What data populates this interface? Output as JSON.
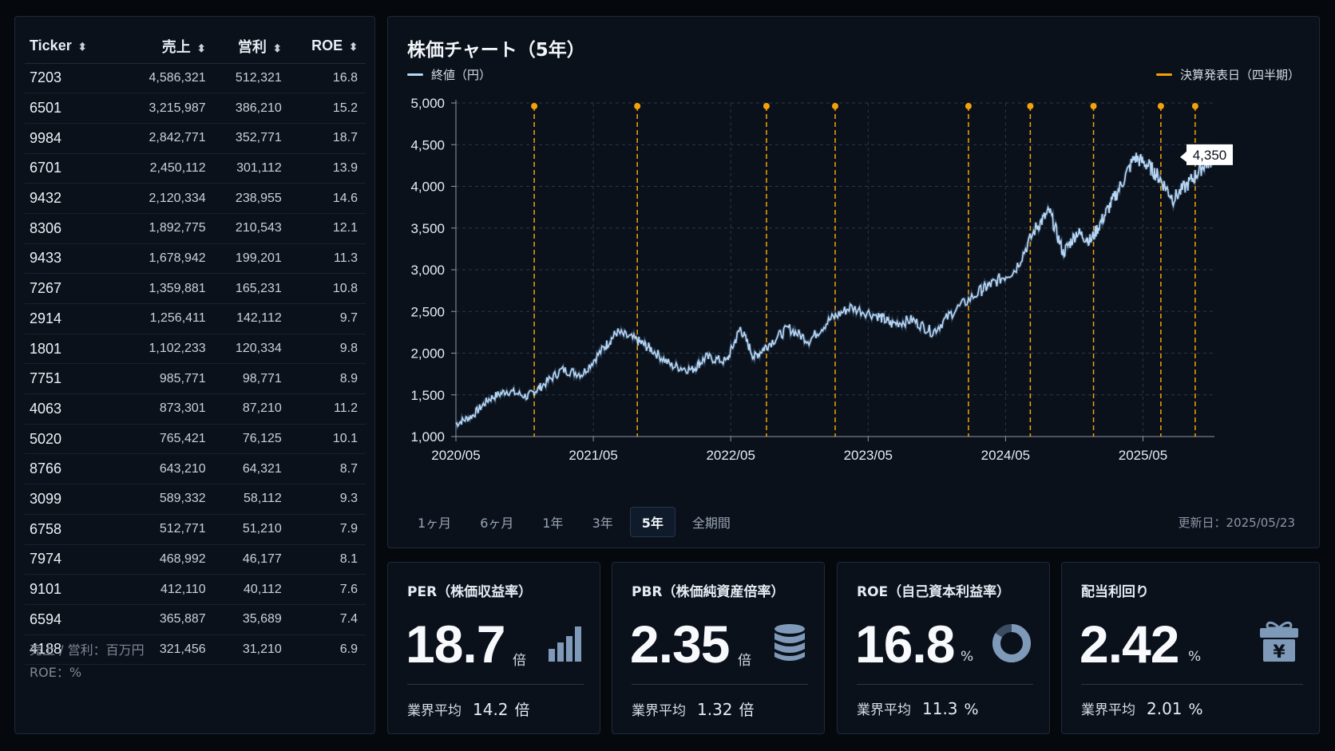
{
  "table": {
    "columns": [
      "Ticker",
      "売上",
      "営利",
      "ROE"
    ],
    "rows": [
      [
        "7203",
        "4,586,321",
        "512,321",
        "16.8"
      ],
      [
        "6501",
        "3,215,987",
        "386,210",
        "15.2"
      ],
      [
        "9984",
        "2,842,771",
        "352,771",
        "18.7"
      ],
      [
        "6701",
        "2,450,112",
        "301,112",
        "13.9"
      ],
      [
        "9432",
        "2,120,334",
        "238,955",
        "14.6"
      ],
      [
        "8306",
        "1,892,775",
        "210,543",
        "12.1"
      ],
      [
        "9433",
        "1,678,942",
        "199,201",
        "11.3"
      ],
      [
        "7267",
        "1,359,881",
        "165,231",
        "10.8"
      ],
      [
        "2914",
        "1,256,411",
        "142,112",
        "9.7"
      ],
      [
        "1801",
        "1,102,233",
        "120,334",
        "9.8"
      ],
      [
        "7751",
        "985,771",
        "98,771",
        "8.9"
      ],
      [
        "4063",
        "873,301",
        "87,210",
        "11.2"
      ],
      [
        "5020",
        "765,421",
        "76,125",
        "10.1"
      ],
      [
        "8766",
        "643,210",
        "64,321",
        "8.7"
      ],
      [
        "3099",
        "589,332",
        "58,112",
        "9.3"
      ],
      [
        "6758",
        "512,771",
        "51,210",
        "7.9"
      ],
      [
        "7974",
        "468,992",
        "46,177",
        "8.1"
      ],
      [
        "9101",
        "412,110",
        "40,112",
        "7.6"
      ],
      [
        "6594",
        "365,887",
        "35,689",
        "7.4"
      ],
      [
        "4188",
        "321,456",
        "31,210",
        "6.9"
      ]
    ],
    "note_line1": "売上 / 営利：百万円",
    "note_line2": "ROE：%"
  },
  "chart": {
    "title": "株価チャート（5年）",
    "legend_price": "終値（円）",
    "legend_earnings": "決算発表日（四半期）",
    "last_value_label": "4,350",
    "range_tabs": [
      "1ヶ月",
      "6ヶ月",
      "1年",
      "3年",
      "5年",
      "全期間"
    ],
    "active_range": "5年",
    "updated": "更新日：2025/05/23"
  },
  "chart_data": {
    "type": "line",
    "title": "株価チャート（5年）",
    "x_tick_labels": [
      "2020/05",
      "2021/05",
      "2022/05",
      "2023/05",
      "2024/05",
      "2025/05"
    ],
    "y_tick_labels": [
      "1,000",
      "1,500",
      "2,000",
      "2,500",
      "3,000",
      "3,500",
      "4,000",
      "4,500",
      "5,000"
    ],
    "xlim": [
      2020.38,
      2025.9
    ],
    "ylim": [
      1000,
      5000
    ],
    "grid": true,
    "legend_position": "top",
    "series": [
      {
        "name": "終値（円）",
        "x": [
          2020.38,
          2020.5,
          2020.62,
          2020.75,
          2020.9,
          2021.0,
          2021.15,
          2021.3,
          2021.45,
          2021.55,
          2021.7,
          2021.8,
          2021.95,
          2022.1,
          2022.2,
          2022.35,
          2022.45,
          2022.55,
          2022.65,
          2022.8,
          2022.95,
          2023.1,
          2023.25,
          2023.45,
          2023.55,
          2023.7,
          2023.85,
          2024.0,
          2024.2,
          2024.3,
          2024.45,
          2024.6,
          2024.7,
          2024.8,
          2024.9,
          2025.0,
          2025.1,
          2025.2,
          2025.32,
          2025.42,
          2025.5,
          2025.6,
          2025.72,
          2025.82,
          2025.9
        ],
        "y": [
          1150,
          1250,
          1450,
          1550,
          1480,
          1600,
          1800,
          1750,
          2050,
          2250,
          2150,
          2050,
          1850,
          1800,
          1950,
          1900,
          2300,
          1950,
          2100,
          2300,
          2150,
          2400,
          2550,
          2450,
          2350,
          2400,
          2250,
          2500,
          2750,
          2850,
          3000,
          3500,
          3700,
          3200,
          3450,
          3350,
          3650,
          3950,
          4350,
          4250,
          4100,
          3850,
          4050,
          4250,
          4350
        ]
      }
    ],
    "earnings_dates": [
      2020.95,
      2021.7,
      2022.64,
      2023.14,
      2024.11,
      2024.56,
      2025.02,
      2025.51,
      2025.76
    ],
    "colors": {
      "price": "#b9d7f5",
      "earnings": "#f5a20a"
    }
  },
  "kpis": [
    {
      "title": "PER（株価収益率）",
      "value": "18.7",
      "unit": "倍",
      "avg_label": "業界平均",
      "avg_value": "14.2",
      "avg_unit": "倍",
      "icon": "bar-chart-icon"
    },
    {
      "title": "PBR（株価純資産倍率）",
      "value": "2.35",
      "unit": "倍",
      "avg_label": "業界平均",
      "avg_value": "1.32",
      "avg_unit": "倍",
      "icon": "database-icon"
    },
    {
      "title": "ROE（自己資本利益率）",
      "value": "16.8",
      "unit": "%",
      "avg_label": "業界平均",
      "avg_value": "11.3",
      "avg_unit": "%",
      "icon": "donut-icon"
    },
    {
      "title": "配当利回り",
      "value": "2.42",
      "unit": "%",
      "avg_label": "業界平均",
      "avg_value": "2.01",
      "avg_unit": "%",
      "icon": "yen-gift-icon",
      "icon_text": "¥"
    }
  ]
}
